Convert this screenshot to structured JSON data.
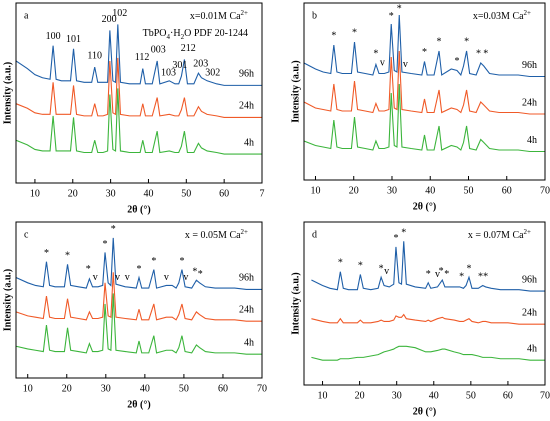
{
  "chart_data": [
    {
      "type": "line",
      "panel_label": "a",
      "condition": {
        "main": "x=0.01M Ca",
        "sup": "2+"
      },
      "phase_label": [
        "TbPO",
        "4",
        "·H",
        "2",
        "O  PDF 20-1244"
      ],
      "xlabel": "2θ (°)",
      "ylabel": "Intensity (a.u.)",
      "xlim": [
        5,
        70
      ],
      "ylim": [
        0,
        118
      ],
      "xticks": [
        10,
        20,
        30,
        40,
        50,
        60,
        {
          "value": 70,
          "label": "7"
        }
      ],
      "x": [
        5,
        8,
        10,
        12,
        14,
        14.8,
        15.6,
        17,
        19.4,
        20.2,
        21,
        23,
        25,
        25.8,
        26.6,
        28,
        29.2,
        29.8,
        30.6,
        31.3,
        31.9,
        32.6,
        35,
        37.8,
        38.5,
        39.2,
        41,
        42.3,
        43,
        45.5,
        47,
        48,
        48.7,
        49.5,
        50.3,
        52,
        53.2,
        54,
        55.5,
        58,
        60,
        63,
        66,
        70
      ],
      "series": [
        {
          "name": "96h",
          "color": "#1f5fa8",
          "values": [
            80,
            75,
            71,
            69,
            68,
            90,
            68,
            67,
            67,
            88,
            67,
            66,
            66,
            76,
            66,
            66,
            66,
            100,
            67,
            66,
            104,
            66,
            65,
            65,
            75,
            65,
            65,
            80,
            65,
            67,
            65,
            65,
            70,
            81,
            65,
            65,
            72,
            69,
            67,
            65,
            64,
            64,
            64,
            64
          ]
        },
        {
          "name": "24h",
          "color": "#f05a28",
          "values": [
            52,
            49,
            46,
            45,
            45,
            66,
            45,
            45,
            45,
            64,
            45,
            44,
            44,
            52,
            44,
            44,
            45,
            80,
            46,
            45,
            82,
            45,
            44,
            44,
            52,
            44,
            44,
            56,
            44,
            45,
            44,
            44,
            48,
            56,
            44,
            44,
            50,
            47,
            45,
            44,
            43,
            43,
            43,
            43
          ]
        },
        {
          "name": "4h",
          "color": "#3cb53c",
          "values": [
            28,
            25,
            22,
            21,
            21,
            44,
            21,
            21,
            21,
            43,
            21,
            20,
            20,
            28,
            20,
            20,
            21,
            58,
            22,
            21,
            62,
            21,
            20,
            20,
            28,
            20,
            20,
            34,
            20,
            21,
            20,
            20,
            24,
            34,
            20,
            20,
            26,
            23,
            21,
            20,
            19,
            19,
            19,
            19
          ]
        }
      ],
      "annotations": [
        {
          "text": "100",
          "x": 14.8,
          "y": 96
        },
        {
          "text": "101",
          "x": 20.2,
          "y": 94
        },
        {
          "text": "110",
          "x": 25.8,
          "y": 83
        },
        {
          "text": "200",
          "x": 29.6,
          "y": 107
        },
        {
          "text": "102",
          "x": 32.4,
          "y": 111
        },
        {
          "text": "112",
          "x": 38.3,
          "y": 82
        },
        {
          "text": "003",
          "x": 42.6,
          "y": 87
        },
        {
          "text": "103",
          "x": 45.3,
          "y": 72
        },
        {
          "text": "301",
          "x": 48.3,
          "y": 77
        },
        {
          "text": "212",
          "x": 50.5,
          "y": 88
        },
        {
          "text": "203",
          "x": 53.8,
          "y": 78
        },
        {
          "text": "302",
          "x": 57,
          "y": 72
        }
      ]
    },
    {
      "type": "line",
      "panel_label": "b",
      "condition": {
        "main": "x=0.03M Ca",
        "sup": "2+"
      },
      "xlabel": "2θ (°)",
      "ylabel": "Intensity (a.u.)",
      "xlim": [
        7,
        70
      ],
      "ylim": [
        0,
        118
      ],
      "xticks": [
        10,
        20,
        30,
        40,
        50,
        60,
        70
      ],
      "x": [
        7,
        10,
        12,
        14,
        14.8,
        15.6,
        17,
        19.4,
        20.2,
        21,
        23,
        25,
        25.8,
        26.6,
        28,
        29.2,
        29.8,
        30.6,
        31.3,
        31.9,
        32.6,
        35,
        37.8,
        38.5,
        39.2,
        41,
        42.3,
        43,
        45.5,
        47,
        48,
        48.7,
        49.5,
        50.3,
        52,
        53.2,
        54,
        55.5,
        58,
        60,
        63,
        66,
        70
      ],
      "series": [
        {
          "name": "96h",
          "color": "#1f5fa8",
          "values": [
            78,
            74,
            72,
            71,
            90,
            72,
            71,
            71,
            92,
            72,
            71,
            70,
            77,
            71,
            71,
            72,
            104,
            73,
            72,
            110,
            72,
            71,
            70,
            79,
            70,
            70,
            86,
            70,
            74,
            73,
            70,
            76,
            86,
            71,
            70,
            78,
            76,
            71,
            70,
            70,
            70,
            69,
            69
          ]
        },
        {
          "name": "24h",
          "color": "#f05a28",
          "values": [
            52,
            48,
            47,
            46,
            64,
            47,
            46,
            46,
            66,
            47,
            46,
            45,
            51,
            46,
            46,
            47,
            82,
            48,
            47,
            86,
            47,
            46,
            45,
            54,
            45,
            45,
            60,
            45,
            48,
            47,
            45,
            50,
            60,
            46,
            45,
            52,
            50,
            46,
            45,
            45,
            45,
            44,
            44
          ]
        },
        {
          "name": "4h",
          "color": "#3cb53c",
          "values": [
            26,
            23,
            22,
            21,
            40,
            22,
            21,
            21,
            42,
            22,
            21,
            20,
            26,
            21,
            21,
            22,
            58,
            23,
            22,
            64,
            22,
            21,
            20,
            30,
            20,
            20,
            36,
            20,
            23,
            22,
            20,
            25,
            36,
            21,
            20,
            27,
            25,
            21,
            20,
            20,
            20,
            19,
            19
          ]
        }
      ],
      "annotations": [
        {
          "text": "*",
          "x": 14.8,
          "y": 96
        },
        {
          "text": "*",
          "x": 20.2,
          "y": 98
        },
        {
          "text": "*",
          "x": 25.8,
          "y": 84
        },
        {
          "text": "*",
          "x": 29.8,
          "y": 109
        },
        {
          "text": "*",
          "x": 31.9,
          "y": 114
        },
        {
          "text": "*",
          "x": 38.5,
          "y": 85
        },
        {
          "text": "*",
          "x": 42.3,
          "y": 92
        },
        {
          "text": "*",
          "x": 47,
          "y": 79
        },
        {
          "text": "*",
          "x": 49.5,
          "y": 92
        },
        {
          "text": "*",
          "x": 52.6,
          "y": 84
        },
        {
          "text": "*",
          "x": 54.5,
          "y": 84
        },
        {
          "text": "v",
          "x": 27.5,
          "y": 78
        },
        {
          "text": "v",
          "x": 33.5,
          "y": 77
        }
      ]
    },
    {
      "type": "line",
      "panel_label": "c",
      "condition": {
        "main": "x = 0.05M Ca",
        "sup": "2+"
      },
      "xlabel": "2θ (°)",
      "ylabel": "Intensity (a.u.)",
      "xlim": [
        7,
        70
      ],
      "ylim": [
        0,
        118
      ],
      "xticks": [
        10,
        20,
        30,
        40,
        50,
        60,
        70
      ],
      "x": [
        7,
        10,
        12,
        14,
        14.8,
        15.6,
        17,
        19.4,
        20.2,
        21,
        23,
        25,
        25.8,
        26.6,
        28,
        29.2,
        29.8,
        30.6,
        31.3,
        31.9,
        32.6,
        35,
        37.8,
        38.5,
        39.2,
        41,
        42.3,
        43,
        45.5,
        47,
        48,
        48.7,
        49.5,
        50.3,
        52,
        53.2,
        54,
        55.5,
        58,
        60,
        63,
        66,
        70
      ],
      "series": [
        {
          "name": "96h",
          "color": "#1f5fa8",
          "values": [
            76,
            72,
            70,
            69,
            88,
            70,
            69,
            69,
            86,
            70,
            69,
            68,
            75,
            69,
            69,
            70,
            95,
            72,
            70,
            106,
            71,
            69,
            68,
            76,
            68,
            68,
            82,
            68,
            70,
            70,
            68,
            72,
            82,
            69,
            68,
            74,
            72,
            69,
            68,
            68,
            68,
            67,
            67
          ]
        },
        {
          "name": "24h",
          "color": "#f05a28",
          "values": [
            50,
            47,
            46,
            45,
            62,
            46,
            45,
            45,
            60,
            46,
            45,
            44,
            50,
            45,
            45,
            46,
            72,
            47,
            46,
            80,
            46,
            45,
            44,
            52,
            44,
            44,
            56,
            44,
            46,
            46,
            44,
            48,
            56,
            45,
            44,
            50,
            48,
            45,
            44,
            44,
            44,
            43,
            43
          ]
        },
        {
          "name": "4h",
          "color": "#3cb53c",
          "values": [
            24,
            22,
            21,
            20,
            40,
            21,
            20,
            20,
            38,
            21,
            20,
            19,
            26,
            20,
            20,
            21,
            56,
            22,
            21,
            64,
            21,
            20,
            19,
            28,
            19,
            19,
            32,
            19,
            21,
            21,
            19,
            23,
            32,
            20,
            19,
            25,
            23,
            20,
            19,
            19,
            19,
            18,
            18
          ]
        }
      ],
      "annotations": [
        {
          "text": "*",
          "x": 14.8,
          "y": 94
        },
        {
          "text": "*",
          "x": 20.2,
          "y": 92
        },
        {
          "text": "*",
          "x": 25.5,
          "y": 82
        },
        {
          "text": "*",
          "x": 29.8,
          "y": 101
        },
        {
          "text": "*",
          "x": 31.9,
          "y": 112
        },
        {
          "text": "*",
          "x": 38.5,
          "y": 82
        },
        {
          "text": "*",
          "x": 42.3,
          "y": 88
        },
        {
          "text": "*",
          "x": 49.5,
          "y": 88
        },
        {
          "text": "*",
          "x": 52.8,
          "y": 80
        },
        {
          "text": "*",
          "x": 54.2,
          "y": 78
        },
        {
          "text": "v",
          "x": 27.3,
          "y": 76
        },
        {
          "text": "v",
          "x": 33,
          "y": 76
        },
        {
          "text": "v",
          "x": 35.5,
          "y": 76
        },
        {
          "text": "v",
          "x": 45.5,
          "y": 76
        },
        {
          "text": "v",
          "x": 50.5,
          "y": 76
        }
      ]
    },
    {
      "type": "line",
      "panel_label": "d",
      "condition": {
        "main": "x = 0.07M Ca",
        "sup": "2+"
      },
      "xlabel": "2θ (°)",
      "ylabel": "Intensity (a.u.)",
      "xlim": [
        5,
        70
      ],
      "ylim": [
        0,
        118
      ],
      "xticks": [
        10,
        20,
        30,
        40,
        50,
        60,
        70
      ],
      "x": [
        7,
        10,
        12,
        14,
        14.8,
        15.6,
        17,
        19.4,
        20.2,
        21,
        23,
        25,
        25.8,
        26.6,
        28,
        29.2,
        29.8,
        30.6,
        31.3,
        31.9,
        32.6,
        35,
        37.8,
        38.5,
        39.2,
        41,
        42.3,
        43,
        45.5,
        47,
        48,
        48.7,
        49.5,
        50.3,
        52,
        53.2,
        54,
        55.5,
        58,
        60,
        63,
        66,
        70
      ],
      "series": [
        {
          "name": "96h",
          "color": "#1f5fa8",
          "values": [
            76,
            72,
            70,
            69,
            82,
            70,
            69,
            69,
            80,
            70,
            69,
            70,
            78,
            72,
            71,
            73,
            100,
            74,
            73,
            104,
            73,
            71,
            70,
            74,
            70,
            71,
            76,
            71,
            71,
            71,
            70,
            72,
            78,
            70,
            70,
            72,
            71,
            70,
            69,
            69,
            69,
            68,
            68
          ]
        },
        {
          "name": "24h",
          "color": "#f05a28",
          "values": [
            48,
            46,
            45,
            45,
            48,
            45,
            45,
            45,
            47,
            45,
            45,
            46,
            47,
            46,
            46,
            47,
            50,
            49,
            49,
            51,
            48,
            47,
            46,
            47,
            46,
            48,
            49,
            48,
            47,
            46,
            46,
            47,
            48,
            46,
            45,
            46,
            46,
            45,
            45,
            45,
            44,
            44,
            44
          ]
        },
        {
          "name": "4h",
          "color": "#3cb53c",
          "values": [
            20,
            18,
            18,
            18,
            19,
            19,
            19,
            20,
            20,
            20,
            21,
            22,
            23,
            24,
            25,
            26,
            27,
            28,
            28,
            28,
            28,
            27,
            24,
            24,
            24,
            25,
            26,
            26,
            24,
            23,
            22,
            22,
            22,
            22,
            21,
            20,
            20,
            20,
            19,
            19,
            19,
            18,
            18
          ]
        }
      ],
      "annotations": [
        {
          "text": "*",
          "x": 14.8,
          "y": 88
        },
        {
          "text": "*",
          "x": 20.2,
          "y": 86
        },
        {
          "text": "*",
          "x": 25.8,
          "y": 84
        },
        {
          "text": "*",
          "x": 29.8,
          "y": 106
        },
        {
          "text": "*",
          "x": 31.9,
          "y": 110
        },
        {
          "text": "*",
          "x": 38.5,
          "y": 80
        },
        {
          "text": "*",
          "x": 42,
          "y": 82
        },
        {
          "text": "*",
          "x": 43.5,
          "y": 80
        },
        {
          "text": "*",
          "x": 47.5,
          "y": 78
        },
        {
          "text": "*",
          "x": 49.5,
          "y": 84
        },
        {
          "text": "*",
          "x": 52.6,
          "y": 78
        },
        {
          "text": "*",
          "x": 54,
          "y": 78
        },
        {
          "text": "v",
          "x": 27.3,
          "y": 82
        },
        {
          "text": "v",
          "x": 41,
          "y": 80
        }
      ]
    }
  ]
}
